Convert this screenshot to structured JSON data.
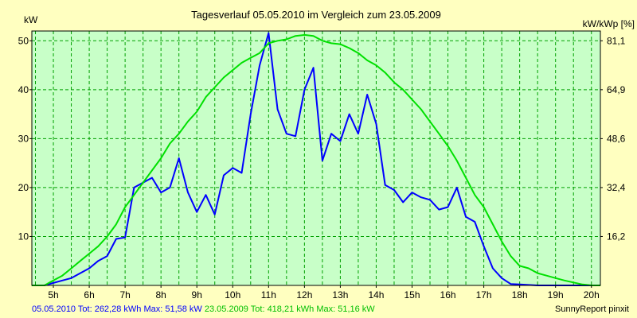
{
  "chart_data": {
    "type": "line",
    "title": "Tagesverlauf 05.05.2010 im Vergleich zum 23.05.2009",
    "left_unit": "kW",
    "right_unit": "kW/kWp [%]",
    "x_tick_labels": [
      "5h",
      "6h",
      "7h",
      "8h",
      "9h",
      "10h",
      "11h",
      "12h",
      "13h",
      "14h",
      "15h",
      "16h",
      "17h",
      "18h",
      "19h",
      "20h"
    ],
    "x_ticks": [
      5,
      6,
      7,
      8,
      9,
      10,
      11,
      12,
      13,
      14,
      15,
      16,
      17,
      18,
      19,
      20
    ],
    "xlim": [
      4.4,
      20.25
    ],
    "ylim": [
      0,
      52
    ],
    "y_ticks": [
      10,
      20,
      30,
      40,
      50
    ],
    "y_tick_labels": [
      "10",
      "20",
      "30",
      "40",
      "50"
    ],
    "right_ticks": [
      {
        "value": 10,
        "label": "16,2"
      },
      {
        "value": 20,
        "label": "32,4"
      },
      {
        "value": 30,
        "label": "48,6"
      },
      {
        "value": 40,
        "label": "64,9"
      },
      {
        "value": 50,
        "label": "81,1"
      }
    ],
    "grid": true,
    "colors": {
      "background": "#ffffc0",
      "plot_background": "#c8ffc8",
      "grid": "#00a000",
      "series_2010": "#0000ff",
      "series_2009": "#00e000"
    },
    "series": [
      {
        "color": "#0000ff",
        "points": [
          [
            4.4,
            0
          ],
          [
            4.75,
            0
          ],
          [
            5.0,
            0.5
          ],
          [
            5.25,
            1.0
          ],
          [
            5.5,
            1.5
          ],
          [
            5.75,
            2.5
          ],
          [
            6.0,
            3.5
          ],
          [
            6.25,
            5.0
          ],
          [
            6.5,
            6.0
          ],
          [
            6.75,
            9.5
          ],
          [
            7.0,
            9.8
          ],
          [
            7.25,
            20
          ],
          [
            7.5,
            21
          ],
          [
            7.75,
            22
          ],
          [
            8.0,
            19
          ],
          [
            8.25,
            20
          ],
          [
            8.5,
            26
          ],
          [
            8.75,
            19
          ],
          [
            9.0,
            15
          ],
          [
            9.25,
            18.5
          ],
          [
            9.5,
            14.5
          ],
          [
            9.75,
            22.5
          ],
          [
            10.0,
            24
          ],
          [
            10.25,
            23
          ],
          [
            10.5,
            35
          ],
          [
            10.75,
            45
          ],
          [
            11.0,
            51.6
          ],
          [
            11.25,
            36
          ],
          [
            11.5,
            31
          ],
          [
            11.75,
            30.5
          ],
          [
            12.0,
            40
          ],
          [
            12.25,
            44.5
          ],
          [
            12.5,
            25.5
          ],
          [
            12.75,
            31
          ],
          [
            13.0,
            29.5
          ],
          [
            13.25,
            35
          ],
          [
            13.5,
            31
          ],
          [
            13.75,
            39
          ],
          [
            14.0,
            33
          ],
          [
            14.25,
            20.5
          ],
          [
            14.5,
            19.5
          ],
          [
            14.75,
            17
          ],
          [
            15.0,
            19
          ],
          [
            15.25,
            18
          ],
          [
            15.5,
            17.5
          ],
          [
            15.75,
            15.5
          ],
          [
            16.0,
            16
          ],
          [
            16.25,
            20
          ],
          [
            16.5,
            14
          ],
          [
            16.75,
            13
          ],
          [
            17.0,
            8
          ],
          [
            17.25,
            3.5
          ],
          [
            17.5,
            1.5
          ],
          [
            17.75,
            0.3
          ],
          [
            18.0,
            0.2
          ],
          [
            18.25,
            0.1
          ],
          [
            18.5,
            0
          ],
          [
            18.75,
            0
          ],
          [
            19.0,
            0
          ],
          [
            19.5,
            0
          ],
          [
            20.0,
            0
          ],
          [
            20.25,
            0
          ]
        ]
      },
      {
        "color": "#00e000",
        "points": [
          [
            4.4,
            0
          ],
          [
            4.75,
            0
          ],
          [
            5.0,
            1.0
          ],
          [
            5.25,
            2.0
          ],
          [
            5.5,
            3.5
          ],
          [
            5.75,
            5.0
          ],
          [
            6.0,
            6.5
          ],
          [
            6.25,
            8.0
          ],
          [
            6.5,
            10
          ],
          [
            6.75,
            12.5
          ],
          [
            7.0,
            16
          ],
          [
            7.25,
            18.5
          ],
          [
            7.5,
            21
          ],
          [
            7.75,
            23.5
          ],
          [
            8.0,
            26
          ],
          [
            8.25,
            29
          ],
          [
            8.5,
            31
          ],
          [
            8.75,
            33.5
          ],
          [
            9.0,
            35.5
          ],
          [
            9.25,
            38.5
          ],
          [
            9.5,
            40.5
          ],
          [
            9.75,
            42.5
          ],
          [
            10.0,
            44
          ],
          [
            10.25,
            45.5
          ],
          [
            10.5,
            46.5
          ],
          [
            10.75,
            47.5
          ],
          [
            11.0,
            49.5
          ],
          [
            11.25,
            50
          ],
          [
            11.5,
            50.3
          ],
          [
            11.75,
            51
          ],
          [
            12.0,
            51.2
          ],
          [
            12.25,
            51
          ],
          [
            12.5,
            50
          ],
          [
            12.75,
            49.5
          ],
          [
            13.0,
            49.3
          ],
          [
            13.25,
            48.5
          ],
          [
            13.5,
            47.5
          ],
          [
            13.75,
            46
          ],
          [
            14.0,
            45
          ],
          [
            14.25,
            43.5
          ],
          [
            14.5,
            41.5
          ],
          [
            14.75,
            40
          ],
          [
            15.0,
            38
          ],
          [
            15.25,
            36
          ],
          [
            15.5,
            33.5
          ],
          [
            15.75,
            31
          ],
          [
            16.0,
            28.5
          ],
          [
            16.25,
            25.5
          ],
          [
            16.5,
            22
          ],
          [
            16.75,
            18.5
          ],
          [
            17.0,
            16
          ],
          [
            17.25,
            12.5
          ],
          [
            17.5,
            9
          ],
          [
            17.75,
            6
          ],
          [
            18.0,
            4
          ],
          [
            18.25,
            3.5
          ],
          [
            18.5,
            2.5
          ],
          [
            18.75,
            2
          ],
          [
            19.0,
            1.5
          ],
          [
            19.25,
            1.0
          ],
          [
            19.5,
            0.6
          ],
          [
            19.75,
            0.2
          ],
          [
            20.0,
            0
          ],
          [
            20.25,
            0
          ]
        ]
      }
    ]
  },
  "footer": {
    "series_2010_text": "05.05.2010 Tot: 262,28 kWh Max: 51,58 kW",
    "series_2009_text": " 23.05.2009 Tot: 418,21 kWh Max: 51,16 kW",
    "credit": "SunnyReport pinxit"
  }
}
